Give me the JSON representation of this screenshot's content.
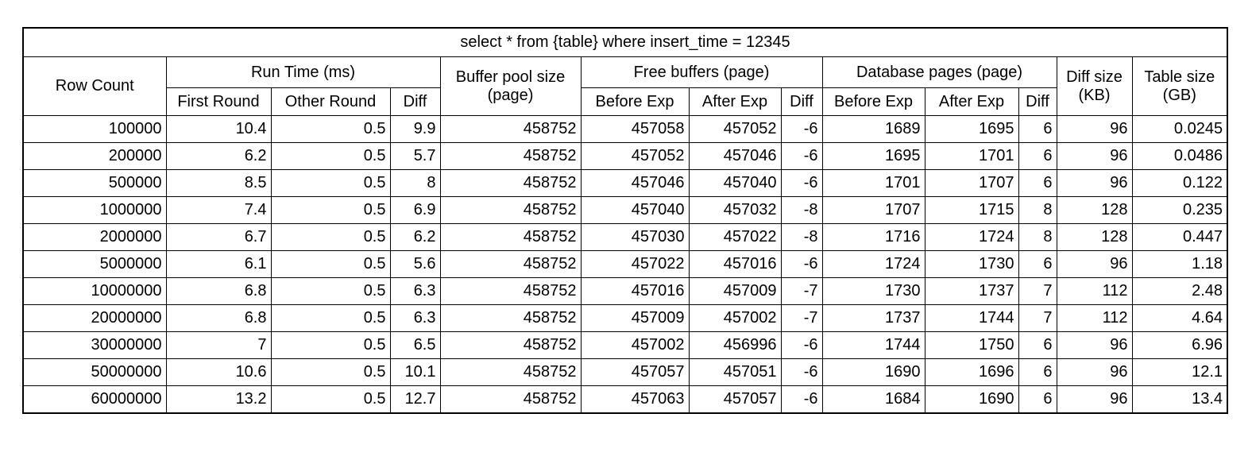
{
  "title": "select * from {table} where insert_time = 12345",
  "headers": {
    "row_count": "Row Count",
    "run_time": "Run Time (ms)",
    "first_round": "First Round",
    "other_round": "Other Round",
    "run_diff": "Diff",
    "buffer_pool_1": "Buffer pool size",
    "buffer_pool_2": "(page)",
    "free_buffers": "Free buffers (page)",
    "fb_before": "Before Exp",
    "fb_after": "After Exp",
    "fb_diff": "Diff",
    "db_pages": "Database pages (page)",
    "db_before": "Before Exp",
    "db_after": "After Exp",
    "db_diff": "Diff",
    "diff_size_1": "Diff size",
    "diff_size_2": "(KB)",
    "table_size_1": "Table size",
    "table_size_2": "(GB)"
  },
  "rows": [
    [
      "100000",
      "10.4",
      "0.5",
      "9.9",
      "458752",
      "457058",
      "457052",
      "-6",
      "1689",
      "1695",
      "6",
      "96",
      "0.0245"
    ],
    [
      "200000",
      "6.2",
      "0.5",
      "5.7",
      "458752",
      "457052",
      "457046",
      "-6",
      "1695",
      "1701",
      "6",
      "96",
      "0.0486"
    ],
    [
      "500000",
      "8.5",
      "0.5",
      "8",
      "458752",
      "457046",
      "457040",
      "-6",
      "1701",
      "1707",
      "6",
      "96",
      "0.122"
    ],
    [
      "1000000",
      "7.4",
      "0.5",
      "6.9",
      "458752",
      "457040",
      "457032",
      "-8",
      "1707",
      "1715",
      "8",
      "128",
      "0.235"
    ],
    [
      "2000000",
      "6.7",
      "0.5",
      "6.2",
      "458752",
      "457030",
      "457022",
      "-8",
      "1716",
      "1724",
      "8",
      "128",
      "0.447"
    ],
    [
      "5000000",
      "6.1",
      "0.5",
      "5.6",
      "458752",
      "457022",
      "457016",
      "-6",
      "1724",
      "1730",
      "6",
      "96",
      "1.18"
    ],
    [
      "10000000",
      "6.8",
      "0.5",
      "6.3",
      "458752",
      "457016",
      "457009",
      "-7",
      "1730",
      "1737",
      "7",
      "112",
      "2.48"
    ],
    [
      "20000000",
      "6.8",
      "0.5",
      "6.3",
      "458752",
      "457009",
      "457002",
      "-7",
      "1737",
      "1744",
      "7",
      "112",
      "4.64"
    ],
    [
      "30000000",
      "7",
      "0.5",
      "6.5",
      "458752",
      "457002",
      "456996",
      "-6",
      "1744",
      "1750",
      "6",
      "96",
      "6.96"
    ],
    [
      "50000000",
      "10.6",
      "0.5",
      "10.1",
      "458752",
      "457057",
      "457051",
      "-6",
      "1690",
      "1696",
      "6",
      "96",
      "12.1"
    ],
    [
      "60000000",
      "13.2",
      "0.5",
      "12.7",
      "458752",
      "457063",
      "457057",
      "-6",
      "1684",
      "1690",
      "6",
      "96",
      "13.4"
    ]
  ]
}
